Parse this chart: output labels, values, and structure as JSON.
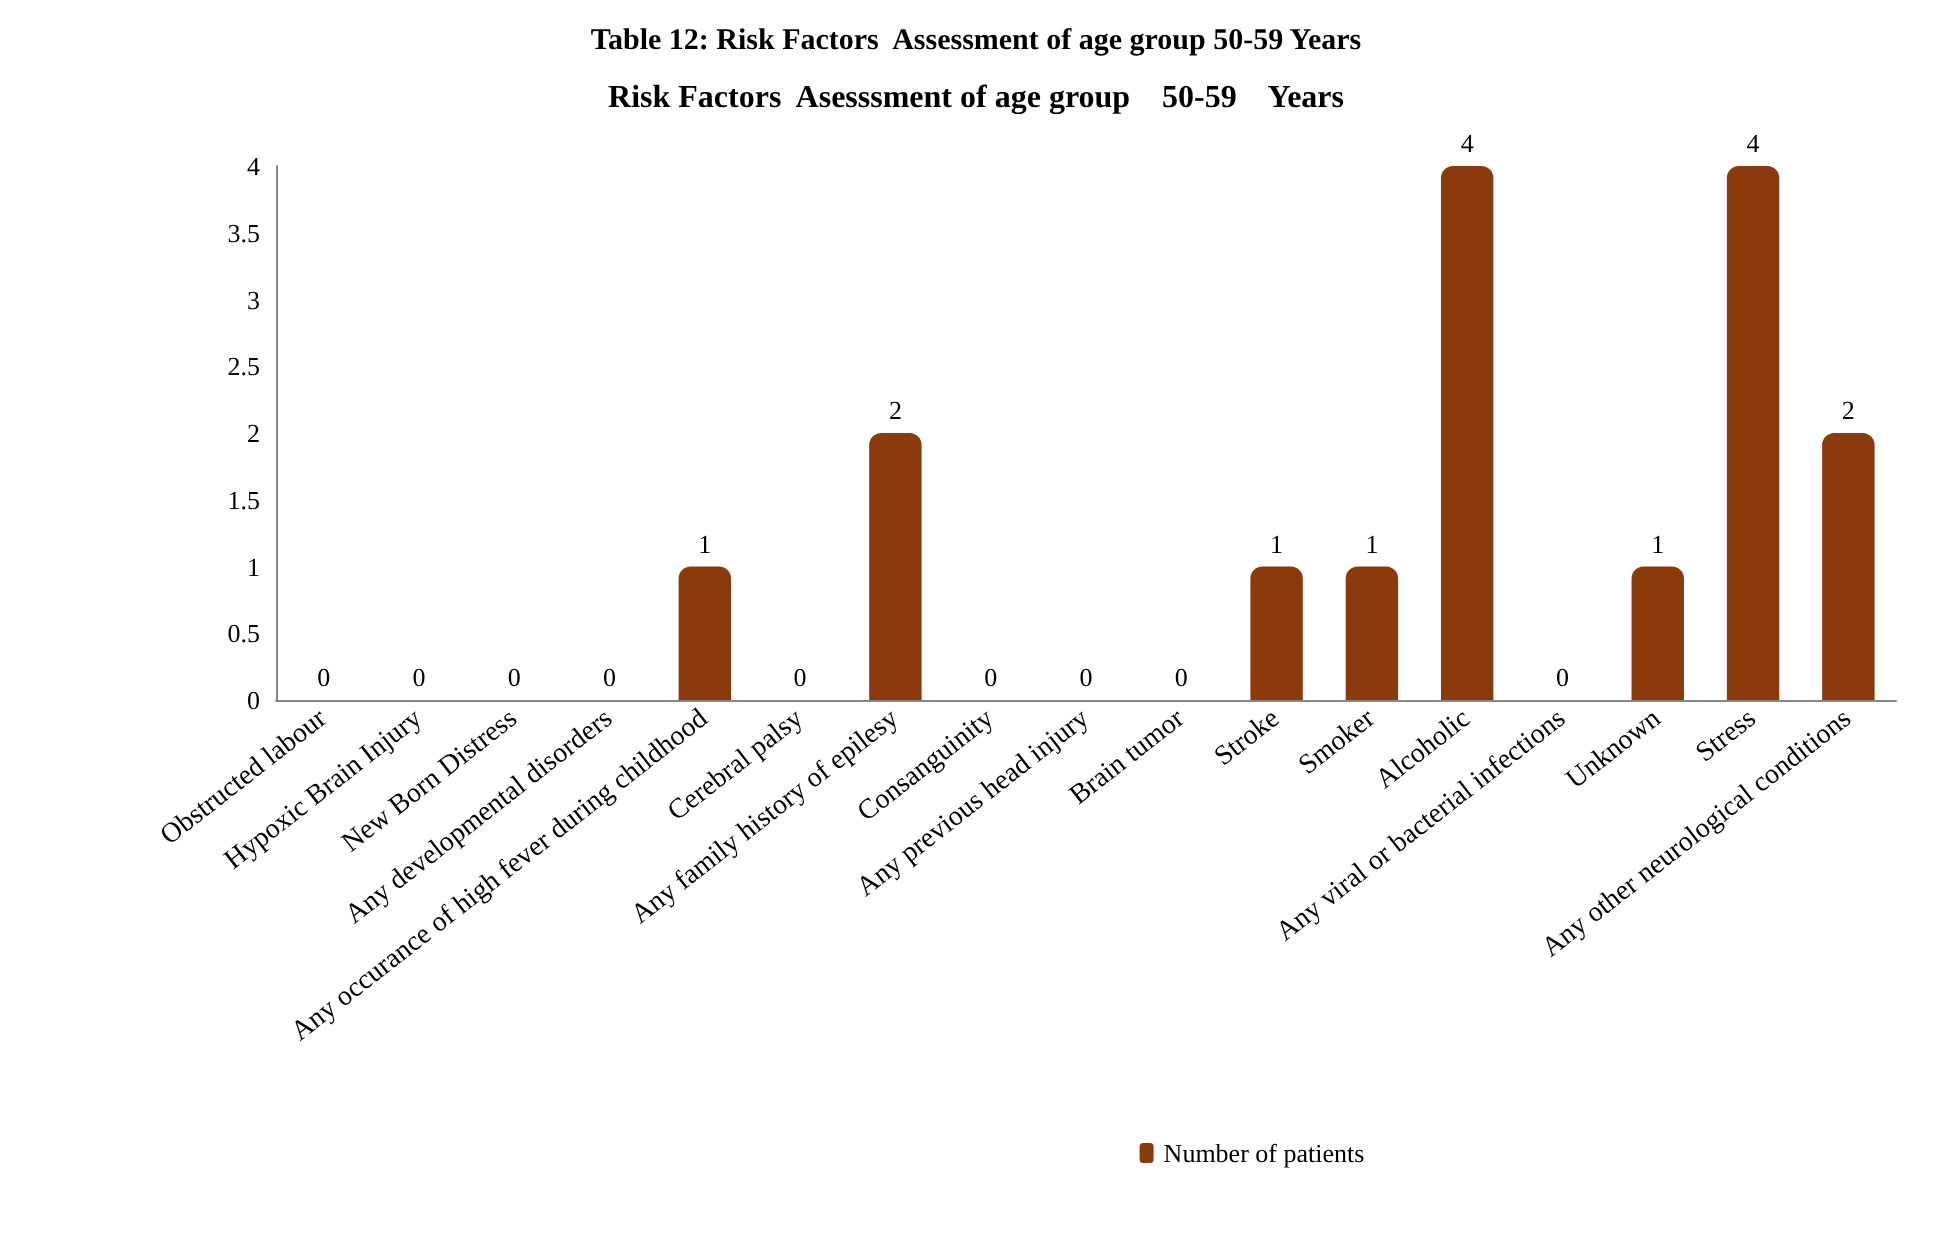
{
  "chart_data": {
    "type": "bar",
    "title": "Risk Factors  Asesssment of age group    50-59    Years",
    "annotations": [
      "Table 12: Risk Factors  Assessment of age group 50-59 Years"
    ],
    "categories": [
      "Obstructed labour",
      "Hypoxic Brain Injury",
      "New Born Distress",
      "Any developmental disorders",
      "Any occurance of high fever during childhood",
      "Cerebral palsy",
      "Any family history of epilesy",
      "Consanguinity",
      "Any previous head injury",
      "Brain tumor",
      "Stroke",
      "Smoker",
      "Alcoholic",
      "Any viral or bacterial infections",
      "Unknown",
      "Stress",
      "Any other neurological conditions"
    ],
    "series": [
      {
        "name": "Number of patients",
        "color": "#8b3a0e",
        "values": [
          0,
          0,
          0,
          0,
          1,
          0,
          2,
          0,
          0,
          0,
          1,
          1,
          4,
          0,
          1,
          4,
          2
        ]
      }
    ],
    "ylim": [
      0,
      4
    ],
    "yticks": [
      0,
      0.5,
      1,
      1.5,
      2,
      2.5,
      3,
      3.5,
      4
    ],
    "grid": false,
    "legend": "bottom",
    "data_labels": true
  }
}
